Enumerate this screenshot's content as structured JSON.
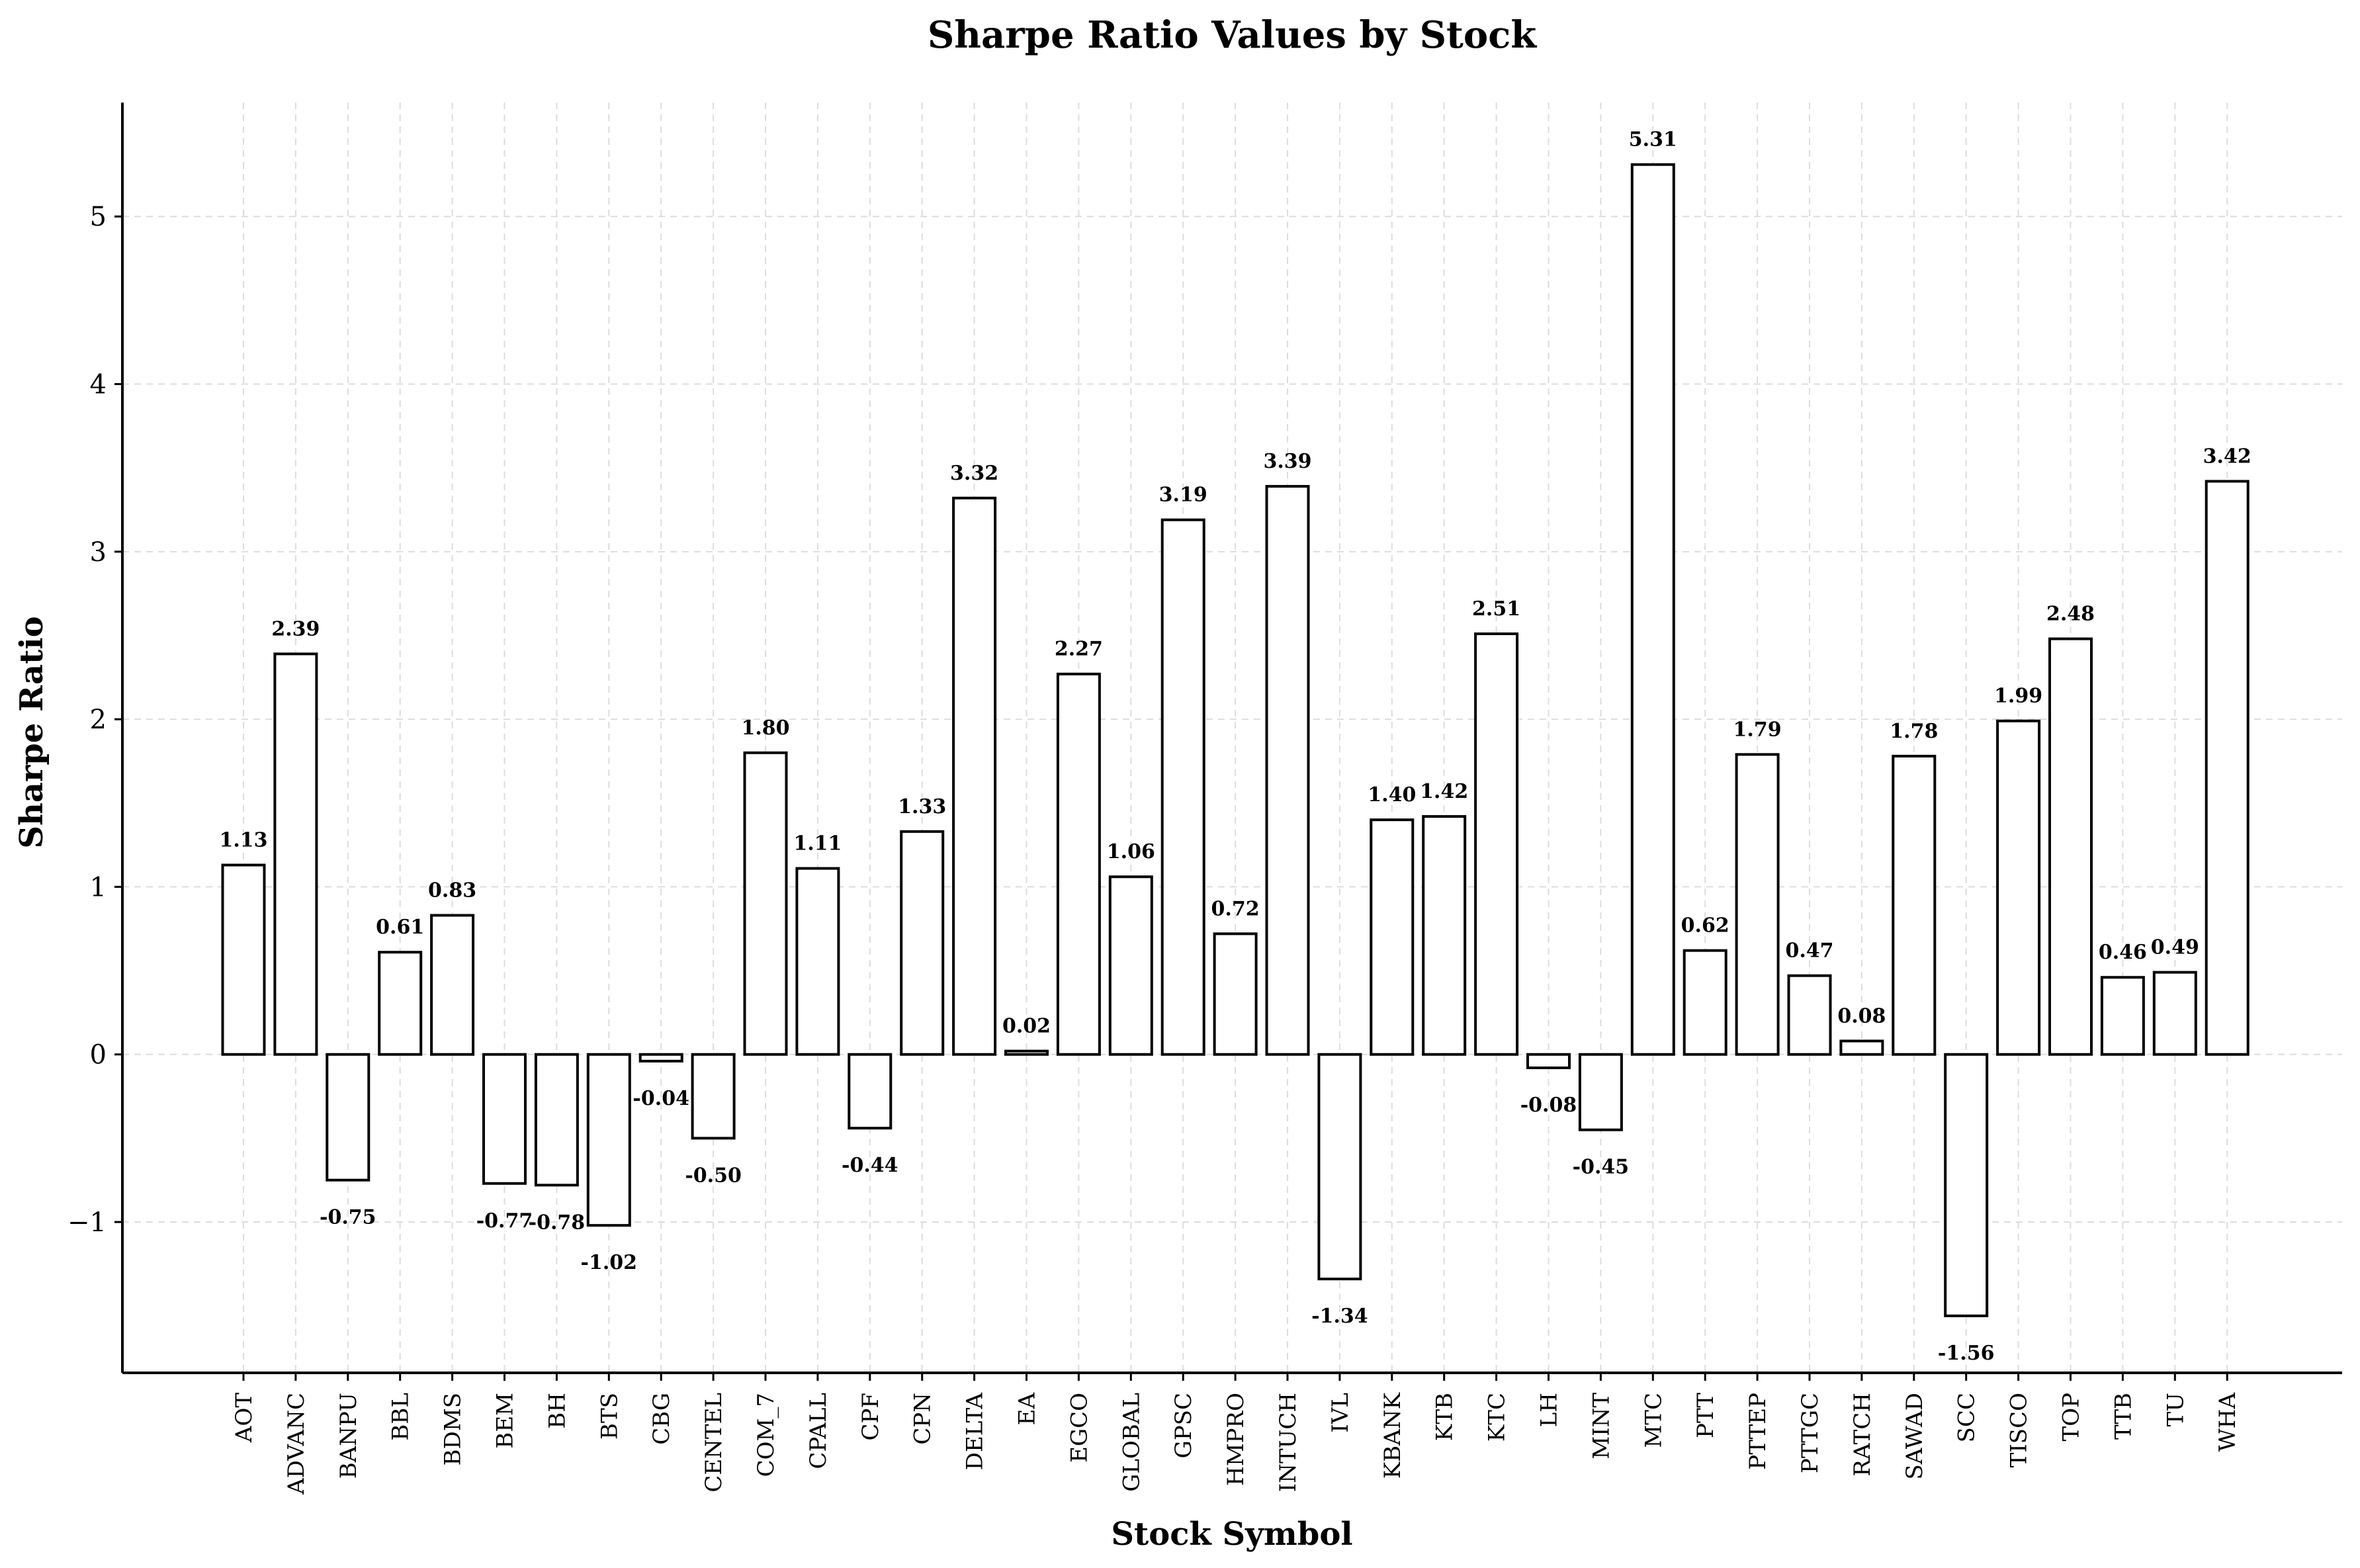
{
  "chart_data": {
    "type": "bar",
    "title": "Sharpe Ratio Values by Stock",
    "xlabel": "Stock Symbol",
    "ylabel": "Sharpe Ratio",
    "ylim": [
      -1.9,
      5.68
    ],
    "yticks": [
      -1,
      0,
      1,
      2,
      3,
      4,
      5
    ],
    "ytick_labels": [
      "−1",
      "0",
      "1",
      "2",
      "3",
      "4",
      "5"
    ],
    "grid": true,
    "categories": [
      "AOT",
      "ADVANC",
      "BANPU",
      "BBL",
      "BDMS",
      "BEM",
      "BH",
      "BTS",
      "CBG",
      "CENTEL",
      "COM_7",
      "CPALL",
      "CPF",
      "CPN",
      "DELTA",
      "EA",
      "EGCO",
      "GLOBAL",
      "GPSC",
      "HMPRO",
      "INTUCH",
      "IVL",
      "KBANK",
      "KTB",
      "KTC",
      "LH",
      "MINT",
      "MTC",
      "PTT",
      "PTTEP",
      "PTTGC",
      "RATCH",
      "SAWAD",
      "SCC",
      "TISCO",
      "TOP",
      "TTB",
      "TU",
      "WHA"
    ],
    "values": [
      1.13,
      2.39,
      -0.75,
      0.61,
      0.83,
      -0.77,
      -0.78,
      -1.02,
      -0.04,
      -0.5,
      1.8,
      1.11,
      -0.44,
      1.33,
      3.32,
      0.02,
      2.27,
      1.06,
      3.19,
      0.72,
      3.39,
      -1.34,
      1.4,
      1.42,
      2.51,
      -0.08,
      -0.45,
      5.31,
      0.62,
      1.79,
      0.47,
      0.08,
      1.78,
      -1.56,
      1.99,
      2.48,
      0.46,
      0.49,
      3.42
    ],
    "value_labels": [
      "1.13",
      "2.39",
      "-0.75",
      "0.61",
      "0.83",
      "-0.77",
      "-0.78",
      "-1.02",
      "-0.04",
      "-0.50",
      "1.80",
      "1.11",
      "-0.44",
      "1.33",
      "3.32",
      "0.02",
      "2.27",
      "1.06",
      "3.19",
      "0.72",
      "3.39",
      "-1.34",
      "1.40",
      "1.42",
      "2.51",
      "-0.08",
      "-0.45",
      "5.31",
      "0.62",
      "1.79",
      "0.47",
      "0.08",
      "1.78",
      "-1.56",
      "1.99",
      "2.48",
      "0.46",
      "0.49",
      "3.42"
    ],
    "bar_fill": "#ffffff",
    "bar_edge": "#000000"
  }
}
